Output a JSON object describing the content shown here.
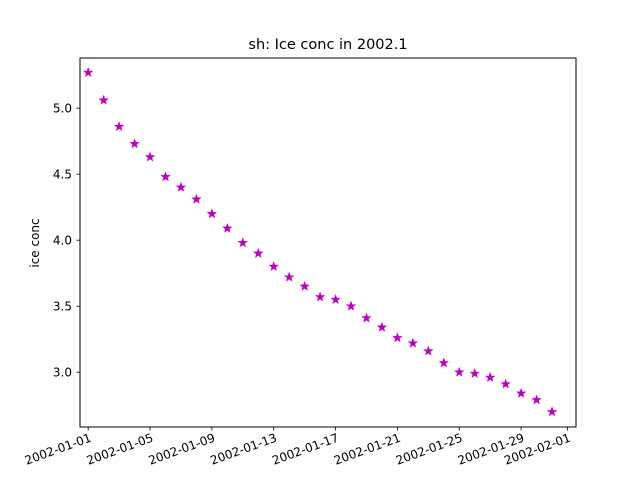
{
  "chart_data": {
    "type": "scatter",
    "title": "sh: Ice conc in 2002.1",
    "xlabel": "",
    "ylabel": "ice conc",
    "x_type": "date",
    "xlim": [
      "2001-12-31",
      "2002-02-01"
    ],
    "ylim": [
      2.585,
      5.38
    ],
    "x_ticks": [
      "2002-01-01",
      "2002-01-05",
      "2002-01-09",
      "2002-01-13",
      "2002-01-17",
      "2002-01-21",
      "2002-01-25",
      "2002-01-29",
      "2002-02-01"
    ],
    "y_ticks": [
      "3.0",
      "3.5",
      "4.0",
      "4.5",
      "5.0"
    ],
    "y_tick_values": [
      3.0,
      3.5,
      4.0,
      4.5,
      5.0
    ],
    "grid": false,
    "legend": "none",
    "marker": "star",
    "color": "#bf00bf",
    "series": [
      {
        "x": [
          "2002-01-01",
          "2002-01-02",
          "2002-01-03",
          "2002-01-04",
          "2002-01-05",
          "2002-01-06",
          "2002-01-07",
          "2002-01-08",
          "2002-01-09",
          "2002-01-10",
          "2002-01-11",
          "2002-01-12",
          "2002-01-13",
          "2002-01-14",
          "2002-01-15",
          "2002-01-16",
          "2002-01-17",
          "2002-01-18",
          "2002-01-19",
          "2002-01-20",
          "2002-01-21",
          "2002-01-22",
          "2002-01-23",
          "2002-01-24",
          "2002-01-25",
          "2002-01-26",
          "2002-01-27",
          "2002-01-28",
          "2002-01-29",
          "2002-01-30",
          "2002-01-31"
        ],
        "y": [
          5.27,
          5.06,
          4.86,
          4.73,
          4.63,
          4.48,
          4.4,
          4.31,
          4.2,
          4.09,
          3.98,
          3.9,
          3.8,
          3.72,
          3.65,
          3.57,
          3.55,
          3.5,
          3.41,
          3.34,
          3.26,
          3.22,
          3.16,
          3.07,
          3.0,
          2.99,
          2.96,
          2.91,
          2.84,
          2.79,
          2.7
        ]
      }
    ]
  }
}
